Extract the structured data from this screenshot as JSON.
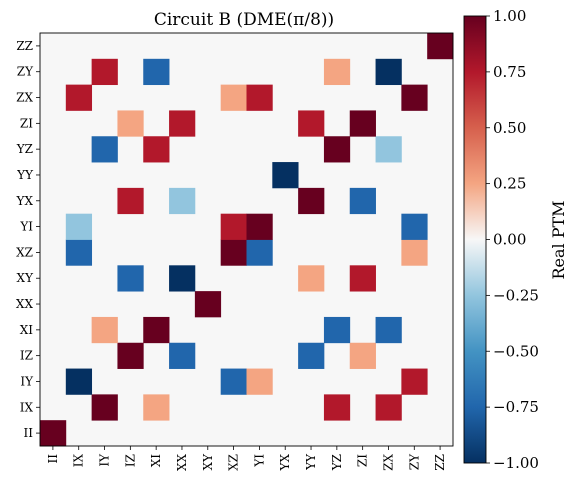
{
  "chart_data": {
    "type": "heatmap",
    "title": "Circuit B (DME(π/8))",
    "x_tick_labels": [
      "II",
      "IX",
      "IY",
      "IZ",
      "XI",
      "XX",
      "XY",
      "XZ",
      "YI",
      "YX",
      "YY",
      "YZ",
      "ZI",
      "ZX",
      "ZY",
      "ZZ"
    ],
    "y_tick_labels": [
      "II",
      "IX",
      "IY",
      "IZ",
      "XI",
      "XX",
      "XY",
      "XZ",
      "YI",
      "YX",
      "YY",
      "YZ",
      "ZI",
      "ZX",
      "ZY",
      "ZZ"
    ],
    "colorbar": {
      "label": "Real PTM",
      "range": [
        -1.0,
        1.0
      ],
      "ticks": [
        "−1.00",
        "−0.75",
        "−0.50",
        "−0.25",
        "0.00",
        "0.25",
        "0.50",
        "0.75",
        "1.00"
      ],
      "colormap": "RdBu_r"
    },
    "background_value": 0,
    "cells": [
      {
        "row": "II",
        "col": "II",
        "value": 1.0
      },
      {
        "row": "IX",
        "col": "IY",
        "value": 1.0
      },
      {
        "row": "IX",
        "col": "XI",
        "value": 0.25
      },
      {
        "row": "IX",
        "col": "YZ",
        "value": 0.75
      },
      {
        "row": "IX",
        "col": "ZX",
        "value": 0.75
      },
      {
        "row": "IY",
        "col": "IX",
        "value": -1.0
      },
      {
        "row": "IY",
        "col": "XZ",
        "value": -0.75
      },
      {
        "row": "IY",
        "col": "YI",
        "value": 0.25
      },
      {
        "row": "IY",
        "col": "ZY",
        "value": 0.75
      },
      {
        "row": "IZ",
        "col": "IZ",
        "value": 1.0
      },
      {
        "row": "IZ",
        "col": "XX",
        "value": -0.75
      },
      {
        "row": "IZ",
        "col": "YY",
        "value": -0.75
      },
      {
        "row": "IZ",
        "col": "ZI",
        "value": 0.25
      },
      {
        "row": "XI",
        "col": "IY",
        "value": 0.25
      },
      {
        "row": "XI",
        "col": "XI",
        "value": 1.0
      },
      {
        "row": "XI",
        "col": "YZ",
        "value": -0.75
      },
      {
        "row": "XI",
        "col": "ZX",
        "value": -0.75
      },
      {
        "row": "XX",
        "col": "XY",
        "value": 1.0
      },
      {
        "row": "XY",
        "col": "IZ",
        "value": -0.75
      },
      {
        "row": "XY",
        "col": "XX",
        "value": -1.0
      },
      {
        "row": "XY",
        "col": "YY",
        "value": 0.25
      },
      {
        "row": "XY",
        "col": "ZI",
        "value": 0.75
      },
      {
        "row": "XZ",
        "col": "IX",
        "value": -0.75
      },
      {
        "row": "XZ",
        "col": "XZ",
        "value": 1.0
      },
      {
        "row": "XZ",
        "col": "YI",
        "value": -0.75
      },
      {
        "row": "XZ",
        "col": "ZY",
        "value": 0.25
      },
      {
        "row": "YI",
        "col": "IX",
        "value": -0.25
      },
      {
        "row": "YI",
        "col": "XZ",
        "value": 0.75
      },
      {
        "row": "YI",
        "col": "YI",
        "value": 1.0
      },
      {
        "row": "YI",
        "col": "ZY",
        "value": -0.75
      },
      {
        "row": "YX",
        "col": "IZ",
        "value": 0.75
      },
      {
        "row": "YX",
        "col": "XX",
        "value": -0.25
      },
      {
        "row": "YX",
        "col": "YY",
        "value": 1.0
      },
      {
        "row": "YX",
        "col": "ZI",
        "value": -0.75
      },
      {
        "row": "YY",
        "col": "YX",
        "value": -1.0
      },
      {
        "row": "YZ",
        "col": "IY",
        "value": -0.75
      },
      {
        "row": "YZ",
        "col": "XI",
        "value": 0.75
      },
      {
        "row": "YZ",
        "col": "YZ",
        "value": 1.0
      },
      {
        "row": "YZ",
        "col": "ZX",
        "value": -0.25
      },
      {
        "row": "ZI",
        "col": "IZ",
        "value": 0.25
      },
      {
        "row": "ZI",
        "col": "XX",
        "value": 0.75
      },
      {
        "row": "ZI",
        "col": "YY",
        "value": 0.75
      },
      {
        "row": "ZI",
        "col": "ZI",
        "value": 1.0
      },
      {
        "row": "ZX",
        "col": "IX",
        "value": 0.75
      },
      {
        "row": "ZX",
        "col": "XZ",
        "value": 0.25
      },
      {
        "row": "ZX",
        "col": "YI",
        "value": 0.75
      },
      {
        "row": "ZX",
        "col": "ZY",
        "value": 1.0
      },
      {
        "row": "ZY",
        "col": "IY",
        "value": 0.75
      },
      {
        "row": "ZY",
        "col": "XI",
        "value": -0.75
      },
      {
        "row": "ZY",
        "col": "YZ",
        "value": 0.25
      },
      {
        "row": "ZY",
        "col": "ZX",
        "value": -1.0
      },
      {
        "row": "ZZ",
        "col": "ZZ",
        "value": 1.0
      }
    ]
  }
}
